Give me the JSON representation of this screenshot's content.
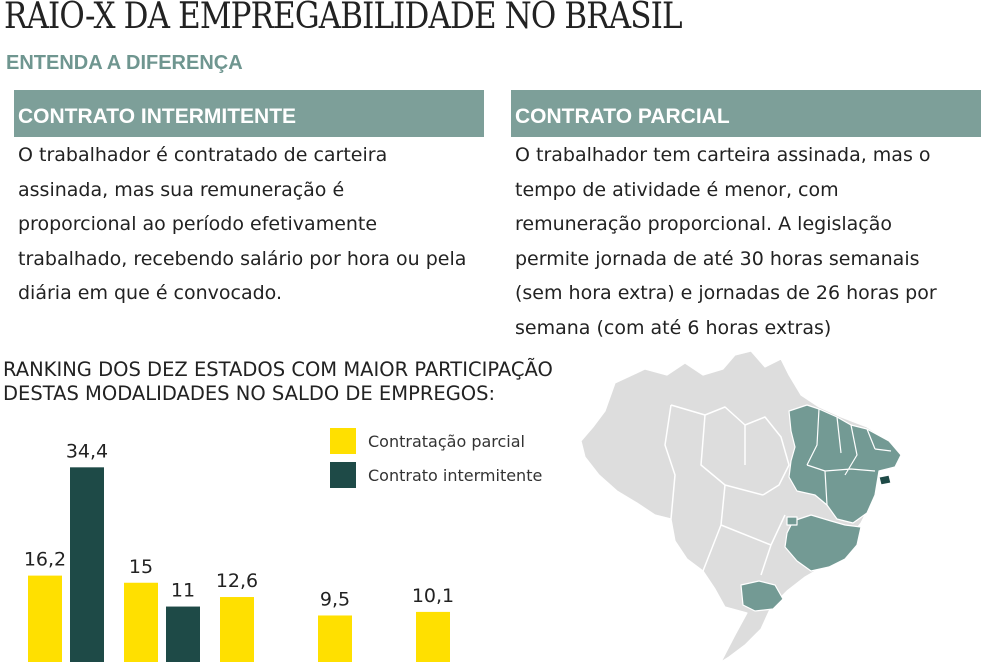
{
  "header": {
    "title": "RAIO-X DA EMPREGABILIDADE NO BRASIL",
    "subtitle": "ENTENDA A DIFERENÇA"
  },
  "boxes": {
    "intermitente": {
      "heading": "CONTRATO INTERMITENTE",
      "lines": [
        "O trabalhador é contratado de carteira",
        "assinada, mas sua remuneração é",
        "proporcional ao período efetivamente",
        "trabalhado, recebendo salário por hora ou pela",
        "diária em que é convocado."
      ]
    },
    "parcial": {
      "heading": "CONTRATO PARCIAL",
      "lines": [
        "O trabalhador tem carteira assinada, mas o",
        "tempo de atividade é menor, com",
        "remuneração proporcional. A legislação",
        "permite jornada de até 30 horas semanais",
        "(sem hora extra) e jornadas de 26 horas por",
        "semana (com até 6 horas extras)"
      ]
    }
  },
  "ranking": {
    "heading_line1": "RANKING DOS DEZ ESTADOS COM MAIOR PARTICIPAÇÃO",
    "heading_line2": "DESTAS MODALIDADES NO SALDO DE EMPREGOS:"
  },
  "colors": {
    "parcial": "#ffe000",
    "intermitente": "#1e4a47",
    "map_highlight": "#739a94",
    "map_base": "#dddddd"
  },
  "chart_data": {
    "type": "bar",
    "title": "",
    "xlabel": "",
    "ylabel": "",
    "categories": [
      "",
      "",
      "",
      "",
      ""
    ],
    "series": [
      {
        "name": "Contratação parcial",
        "values": [
          16.2,
          15,
          12.6,
          9.5,
          10.1
        ]
      },
      {
        "name": "Contrato intermitente",
        "values": [
          34.4,
          11,
          null,
          null,
          null
        ]
      }
    ],
    "data_labels": [
      [
        "16,2",
        "15",
        "12,6",
        "9,5",
        "10,1"
      ],
      [
        "34,4",
        "11",
        "",
        "",
        ""
      ]
    ],
    "ylim": [
      0,
      40
    ],
    "grid": false,
    "legend_position": "top-right"
  }
}
